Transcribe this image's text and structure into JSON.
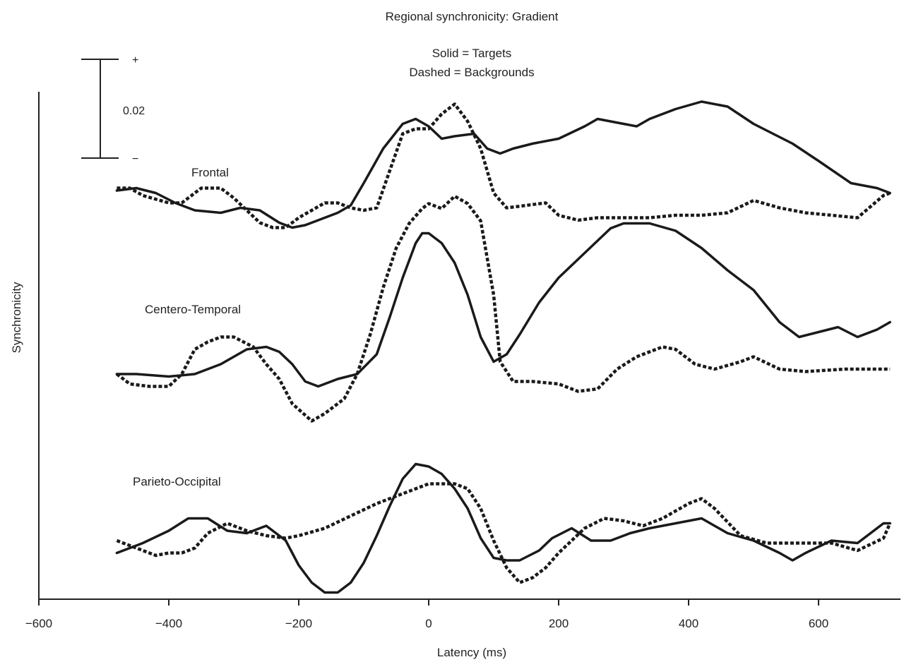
{
  "chart_data": {
    "type": "line",
    "title": "Regional synchronicity: Gradient",
    "legend_lines": [
      "Solid = Targets",
      "Dashed = Backgrounds"
    ],
    "xlabel": "Latency (ms)",
    "ylabel": "Synchronicity",
    "xlim": [
      -600,
      710
    ],
    "xticks": [
      -600,
      -400,
      -200,
      0,
      200,
      400,
      600
    ],
    "xtick_labels": [
      "−600",
      "−400",
      "−200",
      "0",
      "200",
      "400",
      "600"
    ],
    "scale_bar": {
      "label": "0.02",
      "plus": "+",
      "minus": "−",
      "magnitude": 0.02
    },
    "regions": [
      {
        "name": "Frontal",
        "series": [
          {
            "name": "Targets",
            "style": "solid",
            "x": [
              -480,
              -450,
              -420,
              -390,
              -360,
              -320,
              -290,
              -260,
              -230,
              -210,
              -190,
              -170,
              -140,
              -120,
              -100,
              -70,
              -40,
              -20,
              0,
              20,
              40,
              70,
              90,
              110,
              130,
              160,
              200,
              240,
              260,
              280,
              300,
              320,
              340,
              380,
              420,
              460,
              500,
              560,
              600,
              650,
              690,
              710
            ],
            "y": [
              0.0,
              0.0005,
              -0.0005,
              -0.0025,
              -0.004,
              -0.0045,
              -0.0035,
              -0.004,
              -0.0065,
              -0.0075,
              -0.007,
              -0.006,
              -0.0045,
              -0.003,
              0.0015,
              0.0085,
              0.0135,
              0.0145,
              0.013,
              0.0105,
              0.011,
              0.0115,
              0.0085,
              0.0075,
              0.0085,
              0.0095,
              0.0105,
              0.013,
              0.0145,
              0.014,
              0.0135,
              0.013,
              0.0145,
              0.0165,
              0.018,
              0.017,
              0.0135,
              0.0095,
              0.006,
              0.0015,
              0.0005,
              -0.0005
            ]
          },
          {
            "name": "Backgrounds",
            "style": "dashed",
            "x": [
              -480,
              -460,
              -440,
              -400,
              -380,
              -350,
              -320,
              -300,
              -280,
              -260,
              -240,
              -220,
              -200,
              -180,
              -160,
              -140,
              -120,
              -100,
              -80,
              -60,
              -40,
              -20,
              0,
              20,
              40,
              60,
              80,
              100,
              120,
              150,
              180,
              200,
              230,
              260,
              300,
              340,
              380,
              420,
              460,
              500,
              540,
              580,
              620,
              660,
              700,
              710
            ],
            "y": [
              0.0005,
              0.0005,
              -0.001,
              -0.0025,
              -0.0025,
              0.0005,
              0.0005,
              -0.0015,
              -0.004,
              -0.0065,
              -0.0075,
              -0.0075,
              -0.0055,
              -0.004,
              -0.0025,
              -0.0025,
              -0.0035,
              -0.004,
              -0.0035,
              0.004,
              0.0115,
              0.0125,
              0.0125,
              0.0155,
              0.0175,
              0.014,
              0.0085,
              -0.0005,
              -0.0035,
              -0.003,
              -0.0025,
              -0.005,
              -0.006,
              -0.0055,
              -0.0055,
              -0.0055,
              -0.005,
              -0.005,
              -0.0045,
              -0.002,
              -0.0035,
              -0.0045,
              -0.005,
              -0.0055,
              -0.001,
              -0.0005
            ]
          }
        ]
      },
      {
        "name": "Centero-Temporal",
        "series": [
          {
            "name": "Targets",
            "style": "solid",
            "x": [
              -480,
              -450,
              -400,
              -360,
              -320,
              -280,
              -250,
              -230,
              -210,
              -190,
              -170,
              -140,
              -110,
              -80,
              -60,
              -40,
              -20,
              -10,
              0,
              20,
              40,
              60,
              80,
              100,
              120,
              140,
              170,
              200,
              240,
              280,
              300,
              340,
              380,
              420,
              460,
              500,
              540,
              570,
              600,
              630,
              660,
              690,
              710
            ],
            "y": [
              0.0,
              0.0,
              -0.0005,
              0.0,
              0.002,
              0.005,
              0.0055,
              0.0045,
              0.002,
              -0.0015,
              -0.0025,
              -0.001,
              0.0,
              0.004,
              0.0115,
              0.0195,
              0.0265,
              0.0285,
              0.0285,
              0.0265,
              0.0225,
              0.016,
              0.0075,
              0.0025,
              0.004,
              0.008,
              0.0145,
              0.0195,
              0.0245,
              0.0295,
              0.0305,
              0.0305,
              0.029,
              0.0255,
              0.021,
              0.017,
              0.0105,
              0.0075,
              0.0085,
              0.0095,
              0.0075,
              0.009,
              0.0105
            ]
          },
          {
            "name": "Backgrounds",
            "style": "dashed",
            "x": [
              -480,
              -460,
              -430,
              -400,
              -380,
              -360,
              -340,
              -320,
              -300,
              -270,
              -250,
              -230,
              -210,
              -180,
              -160,
              -130,
              -110,
              -90,
              -70,
              -50,
              -30,
              -10,
              0,
              20,
              40,
              60,
              80,
              100,
              110,
              130,
              160,
              200,
              230,
              260,
              290,
              320,
              360,
              380,
              410,
              440,
              480,
              500,
              540,
              580,
              640,
              700,
              710
            ],
            "y": [
              0.0,
              -0.002,
              -0.0025,
              -0.0025,
              0.0,
              0.005,
              0.0065,
              0.0075,
              0.0075,
              0.0055,
              0.002,
              -0.001,
              -0.006,
              -0.0095,
              -0.008,
              -0.005,
              0.0,
              0.008,
              0.0175,
              0.0255,
              0.0305,
              0.0335,
              0.0345,
              0.0335,
              0.036,
              0.0345,
              0.031,
              0.016,
              0.0025,
              -0.0015,
              -0.0015,
              -0.002,
              -0.0035,
              -0.003,
              0.001,
              0.0035,
              0.0055,
              0.005,
              0.002,
              0.001,
              0.0025,
              0.0035,
              0.001,
              0.0005,
              0.001,
              0.001,
              0.001
            ]
          }
        ]
      },
      {
        "name": "Parieto-Occipital",
        "series": [
          {
            "name": "Targets",
            "style": "solid",
            "x": [
              -480,
              -440,
              -400,
              -370,
              -340,
              -310,
              -280,
              -250,
              -220,
              -200,
              -180,
              -160,
              -140,
              -120,
              -100,
              -80,
              -60,
              -40,
              -20,
              0,
              20,
              40,
              60,
              80,
              100,
              120,
              140,
              170,
              190,
              220,
              250,
              280,
              310,
              340,
              380,
              420,
              460,
              500,
              540,
              560,
              580,
              620,
              660,
              700,
              710
            ],
            "y": [
              -0.0015,
              0.0005,
              0.003,
              0.0055,
              0.0055,
              0.003,
              0.0025,
              0.004,
              0.001,
              -0.004,
              -0.0075,
              -0.0095,
              -0.0095,
              -0.0075,
              -0.0035,
              0.002,
              0.008,
              0.0135,
              0.0165,
              0.016,
              0.0145,
              0.0115,
              0.0075,
              0.0015,
              -0.0025,
              -0.003,
              -0.003,
              -0.001,
              0.0015,
              0.0035,
              0.001,
              0.001,
              0.0025,
              0.0035,
              0.0045,
              0.0055,
              0.0025,
              0.001,
              -0.0015,
              -0.003,
              -0.0015,
              0.001,
              0.0005,
              0.0045,
              0.0045
            ]
          },
          {
            "name": "Backgrounds",
            "style": "dashed",
            "x": [
              -480,
              -450,
              -420,
              -400,
              -380,
              -360,
              -340,
              -310,
              -280,
              -250,
              -220,
              -200,
              -160,
              -120,
              -80,
              -40,
              0,
              20,
              40,
              60,
              80,
              100,
              120,
              140,
              160,
              180,
              200,
              220,
              240,
              270,
              300,
              330,
              360,
              400,
              420,
              440,
              480,
              520,
              560,
              600,
              620,
              660,
              700,
              710
            ],
            "y": [
              0.001,
              -0.0005,
              -0.002,
              -0.0015,
              -0.0015,
              -0.0005,
              0.0025,
              0.0045,
              0.003,
              0.002,
              0.0015,
              0.002,
              0.0035,
              0.006,
              0.0085,
              0.0105,
              0.0125,
              0.0125,
              0.0125,
              0.0115,
              0.0075,
              0.001,
              -0.0045,
              -0.0075,
              -0.0065,
              -0.0045,
              -0.0015,
              0.001,
              0.0035,
              0.0055,
              0.005,
              0.004,
              0.0055,
              0.0085,
              0.0095,
              0.0075,
              0.002,
              0.0005,
              0.0005,
              0.0005,
              0.0005,
              -0.001,
              0.0015,
              0.0045
            ]
          }
        ]
      }
    ]
  }
}
